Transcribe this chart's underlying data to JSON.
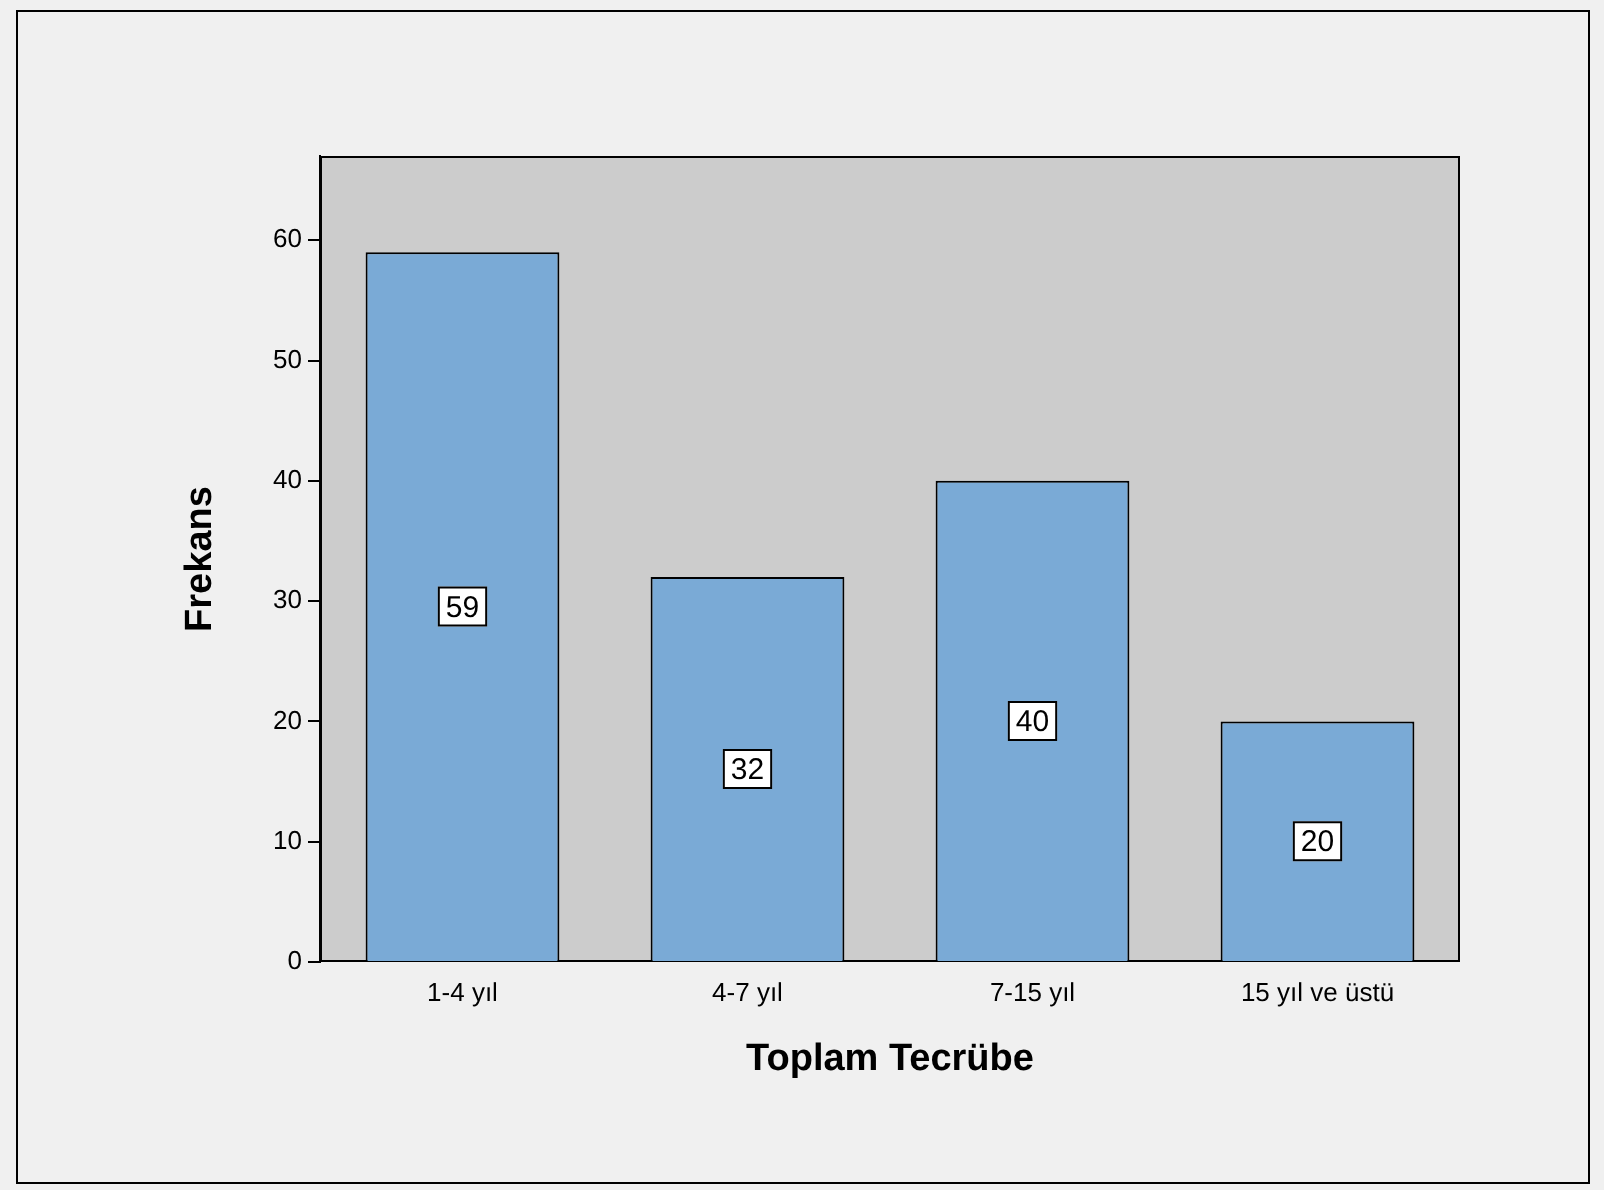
{
  "chart_data": {
    "type": "bar",
    "xlabel": "Toplam Tecrübe",
    "ylabel": "Frekans",
    "categories": [
      "1-4 yıl",
      "4-7 yıl",
      "7-15 yıl",
      "15 yıl ve üstü"
    ],
    "values": [
      59,
      32,
      40,
      20
    ],
    "color": "#7aaad6",
    "ylim": [
      0,
      67
    ],
    "yticks": [
      0,
      10,
      20,
      30,
      40,
      50,
      60
    ],
    "grid": false,
    "legend": false,
    "data_labels": true
  }
}
